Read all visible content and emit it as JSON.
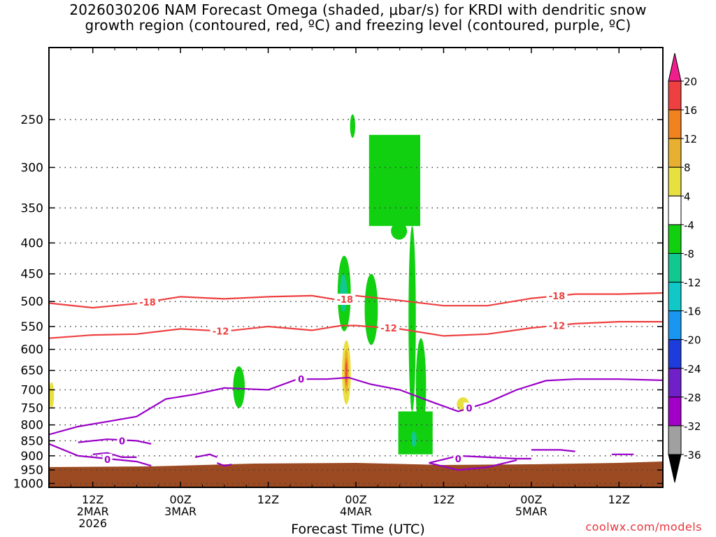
{
  "title": {
    "line1": "2026030206 NAM Forecast Omega (shaded, μbar/s) for KRDI with dendritic snow",
    "line2": "growth region (contoured, red, ºC) and freezing level (contoured, purple, ºC)"
  },
  "credit": "coolwx.com/models",
  "chart_data": {
    "type": "heatmap",
    "title": "2026030206 NAM Forecast Omega (shaded, μbar/s) for KRDI with dendritic snow growth region (contoured, red, ºC) and freezing level (contoured, purple, ºC)",
    "xlabel": "Forecast Time (UTC)",
    "ylabel": "",
    "y_axis": {
      "ticks": [
        250,
        300,
        350,
        400,
        450,
        500,
        550,
        600,
        650,
        700,
        750,
        800,
        850,
        900,
        950,
        1000
      ],
      "labels": [
        "250",
        "300",
        "350",
        "400",
        "450",
        "500",
        "550",
        "600",
        "650",
        "700",
        "750",
        "800",
        "850",
        "900",
        "950",
        "1000"
      ],
      "range": [
        1015,
        190
      ],
      "scale": "log-pressure (inverted)",
      "grid": "dotted"
    },
    "x_axis": {
      "range_hours": [
        6,
        90
      ],
      "ticks_hours": [
        12,
        24,
        36,
        48,
        60,
        72,
        84
      ],
      "ticks": [
        {
          "label": "12Z",
          "sub1": "2MAR",
          "sub2": "2026"
        },
        {
          "label": "00Z",
          "sub1": "3MAR",
          "sub2": ""
        },
        {
          "label": "12Z",
          "sub1": "",
          "sub2": ""
        },
        {
          "label": "00Z",
          "sub1": "4MAR",
          "sub2": ""
        },
        {
          "label": "12Z",
          "sub1": "",
          "sub2": ""
        },
        {
          "label": "00Z",
          "sub1": "5MAR",
          "sub2": ""
        },
        {
          "label": "12Z",
          "sub1": "",
          "sub2": ""
        }
      ]
    },
    "colorbar": {
      "labels": [
        "20",
        "16",
        "12",
        "8",
        "4",
        "-4",
        "-8",
        "-12",
        "-16",
        "-20",
        "-24",
        "-28",
        "-32",
        "-36"
      ],
      "colors": [
        "#ee1e8c",
        "#ee4040",
        "#f08220",
        "#e8b030",
        "#e8e040",
        "#ffffff",
        "#10d010",
        "#10c890",
        "#10c8c8",
        "#1896f0",
        "#1e3cdc",
        "#7020c8",
        "#a000c8",
        "#a0a0a0",
        "#000000"
      ]
    },
    "omega_regions": [
      {
        "level": "-8",
        "x_hours": [
          47.2,
          47.9
        ],
        "p": [
          245,
          268
        ],
        "color": "#10d010"
      },
      {
        "level": "-8",
        "x_hours": [
          49.8,
          56.8
        ],
        "p": [
          265,
          375
        ],
        "color": "#10d010"
      },
      {
        "level": "-8",
        "x_hours": [
          52.8,
          55.0
        ],
        "p": [
          370,
          395
        ],
        "color": "#10d010"
      },
      {
        "level": "-8",
        "x_hours": [
          55.2,
          56.2
        ],
        "p": [
          375,
          760
        ],
        "color": "#10d010"
      },
      {
        "level": "-8",
        "x_hours": [
          45.5,
          47.3
        ],
        "p": [
          420,
          560
        ],
        "color": "#10d010"
      },
      {
        "level": "-12",
        "x_hours": [
          45.8,
          46.8
        ],
        "p": [
          450,
          520
        ],
        "color": "#10c890"
      },
      {
        "level": "-8",
        "x_hours": [
          49.2,
          51.0
        ],
        "p": [
          450,
          590
        ],
        "color": "#10d010"
      },
      {
        "level": "-8",
        "x_hours": [
          31.2,
          32.8
        ],
        "p": [
          640,
          750
        ],
        "color": "#10d010"
      },
      {
        "level": "-8",
        "x_hours": [
          56.2,
          57.6
        ],
        "p": [
          575,
          830
        ],
        "color": "#10d010"
      },
      {
        "level": "-8",
        "x_hours": [
          53.8,
          58.5
        ],
        "p": [
          760,
          895
        ],
        "color": "#10d010"
      },
      {
        "level": "-12",
        "x_hours": [
          55.6,
          56.3
        ],
        "p": [
          820,
          870
        ],
        "color": "#10c890"
      },
      {
        "level": "4",
        "x_hours": [
          46.1,
          47.3
        ],
        "p": [
          580,
          740
        ],
        "color": "#e8e040"
      },
      {
        "level": "8",
        "x_hours": [
          46.4,
          47.0
        ],
        "p": [
          600,
          710
        ],
        "color": "#e8b030"
      },
      {
        "level": "12",
        "x_hours": [
          46.5,
          46.9
        ],
        "p": [
          620,
          690
        ],
        "color": "#f08220"
      },
      {
        "level": "16",
        "x_hours": [
          46.6,
          46.8
        ],
        "p": [
          630,
          680
        ],
        "color": "#ee4040"
      },
      {
        "level": "4",
        "x_hours": [
          6.0,
          6.7
        ],
        "p": [
          680,
          750
        ],
        "color": "#e8e040"
      },
      {
        "level": "4",
        "x_hours": [
          61.8,
          63.5
        ],
        "p": [
          720,
          760
        ],
        "color": "#e8e040"
      }
    ],
    "contours": [
      {
        "value": -18,
        "color": "#ee4040",
        "label": "-18",
        "label_positions_hours": [
          19.5,
          46.5,
          75.5
        ],
        "points": [
          [
            6,
            503
          ],
          [
            12,
            512
          ],
          [
            18,
            504
          ],
          [
            24,
            491
          ],
          [
            30,
            495
          ],
          [
            36,
            491
          ],
          [
            42,
            489
          ],
          [
            46,
            498
          ],
          [
            48,
            489
          ],
          [
            54,
            498
          ],
          [
            60,
            508
          ],
          [
            66,
            508
          ],
          [
            72,
            494
          ],
          [
            78,
            486
          ],
          [
            84,
            486
          ],
          [
            90,
            484
          ]
        ]
      },
      {
        "value": -12,
        "color": "#ee4040",
        "label": "-12",
        "label_positions_hours": [
          29.5,
          52.5,
          75.5
        ],
        "points": [
          [
            6,
            575
          ],
          [
            12,
            568
          ],
          [
            18,
            566
          ],
          [
            24,
            555
          ],
          [
            30,
            560
          ],
          [
            36,
            550
          ],
          [
            42,
            558
          ],
          [
            46,
            548
          ],
          [
            48,
            548
          ],
          [
            54,
            555
          ],
          [
            60,
            570
          ],
          [
            66,
            566
          ],
          [
            72,
            553
          ],
          [
            78,
            544
          ],
          [
            84,
            540
          ],
          [
            90,
            540
          ]
        ]
      }
    ],
    "freezing_level": {
      "value": 0,
      "color": "#9a00c8",
      "label": "0",
      "main_points": [
        [
          6,
          830
        ],
        [
          10,
          805
        ],
        [
          14,
          790
        ],
        [
          18,
          775
        ],
        [
          22,
          725
        ],
        [
          26,
          712
        ],
        [
          30,
          695
        ],
        [
          36,
          700
        ],
        [
          40,
          672
        ],
        [
          44,
          672
        ],
        [
          47,
          668
        ],
        [
          50,
          685
        ],
        [
          54,
          700
        ],
        [
          58,
          730
        ],
        [
          62,
          760
        ],
        [
          66,
          735
        ],
        [
          70,
          700
        ],
        [
          74,
          676
        ],
        [
          78,
          672
        ],
        [
          84,
          672
        ],
        [
          90,
          675
        ]
      ],
      "label_positions_hours": [
        40.5,
        63.5
      ]
    }
  }
}
